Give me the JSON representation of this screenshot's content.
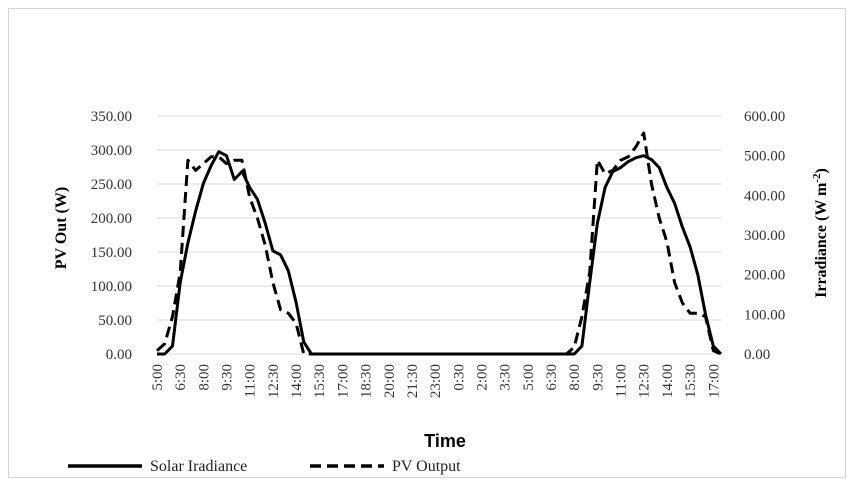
{
  "chart_data": {
    "type": "line",
    "xlabel": "Time",
    "ylabel_left": "PV Out (W)",
    "ylabel_right_main": "Irradiance (W m",
    "ylabel_right_sup": "-2",
    "ylabel_right_end": ")",
    "ylim_left": [
      0,
      350
    ],
    "ylim_right": [
      0,
      600
    ],
    "yticks_left": [
      "0.00",
      "50.00",
      "100.00",
      "150.00",
      "200.00",
      "250.00",
      "300.00",
      "350.00"
    ],
    "yticks_right": [
      "0.00",
      "100.00",
      "200.00",
      "300.00",
      "400.00",
      "500.00",
      "600.00"
    ],
    "x_ticks": [
      "5:00",
      "6:30",
      "8:00",
      "9:30",
      "11:00",
      "12:30",
      "14:00",
      "15:30",
      "17:00",
      "18:30",
      "20:00",
      "21:30",
      "23:00",
      "0:30",
      "2:00",
      "3:30",
      "5:00",
      "6:30",
      "8:00",
      "9:30",
      "11:00",
      "12:30",
      "14:00",
      "15:30",
      "17:00"
    ],
    "x_hours": [
      5,
      5.5,
      6,
      6.5,
      7,
      7.5,
      8,
      8.5,
      9,
      9.5,
      10,
      10.5,
      11,
      11.5,
      12,
      12.5,
      13,
      13.5,
      14,
      14.5,
      15,
      15.5,
      16,
      16.5,
      17,
      17.5,
      18,
      18.5,
      19,
      19.5,
      20,
      20.5,
      21,
      21.5,
      22,
      22.5,
      23,
      23.5,
      24,
      24.5,
      25,
      25.5,
      26,
      26.5,
      27,
      27.5,
      28,
      28.5,
      29,
      29.5,
      30,
      30.5,
      31,
      31.5,
      32,
      32.5,
      33,
      33.5,
      34,
      34.5,
      35,
      35.5,
      36,
      36.5,
      37,
      37.5,
      38,
      38.5,
      39,
      39.5,
      40,
      40.5,
      41,
      41.5
    ],
    "grid": true,
    "legend_position": "bottom",
    "series": [
      {
        "name": "Solar Iradiance",
        "axis": "right",
        "style": "solid",
        "values": [
          0,
          0,
          20,
          180,
          280,
          360,
          430,
          475,
          510,
          500,
          440,
          460,
          420,
          390,
          330,
          260,
          250,
          210,
          130,
          30,
          0,
          0,
          0,
          0,
          0,
          0,
          0,
          0,
          0,
          0,
          0,
          0,
          0,
          0,
          0,
          0,
          0,
          0,
          0,
          0,
          0,
          0,
          0,
          0,
          0,
          0,
          0,
          0,
          0,
          0,
          0,
          0,
          0,
          0,
          0,
          20,
          180,
          330,
          420,
          460,
          470,
          485,
          495,
          500,
          490,
          470,
          420,
          380,
          320,
          270,
          200,
          100,
          20,
          0
        ]
      },
      {
        "name": "PV Output",
        "axis": "left",
        "style": "dashed",
        "values": [
          5,
          15,
          55,
          120,
          285,
          270,
          280,
          290,
          290,
          280,
          285,
          285,
          230,
          200,
          160,
          105,
          65,
          60,
          45,
          0,
          0,
          0,
          0,
          0,
          0,
          0,
          0,
          0,
          0,
          0,
          0,
          0,
          0,
          0,
          0,
          0,
          0,
          0,
          0,
          0,
          0,
          0,
          0,
          0,
          0,
          0,
          0,
          0,
          0,
          0,
          0,
          0,
          0,
          0,
          10,
          55,
          120,
          285,
          265,
          270,
          285,
          290,
          305,
          325,
          250,
          200,
          165,
          105,
          75,
          60,
          60,
          55,
          5,
          0
        ]
      }
    ]
  }
}
